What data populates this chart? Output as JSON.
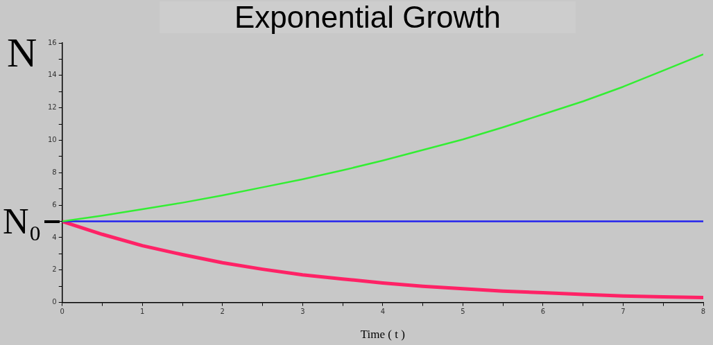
{
  "chart_data": {
    "type": "line",
    "title": "Exponential Growth",
    "xlabel": "Time ( t )",
    "ylabel": "N",
    "x": [
      0,
      0.5,
      1,
      1.5,
      2,
      2.5,
      3,
      3.5,
      4,
      4.5,
      5,
      5.5,
      6,
      6.5,
      7,
      7.5,
      8
    ],
    "series": [
      {
        "color": "#33ee33",
        "values": [
          5,
          5.35,
          5.75,
          6.15,
          6.6,
          7.1,
          7.6,
          8.15,
          8.75,
          9.4,
          10.05,
          10.8,
          11.6,
          12.4,
          13.3,
          14.3,
          15.3
        ]
      },
      {
        "color": "#2222ee",
        "values": [
          5,
          5,
          5,
          5,
          5,
          5,
          5,
          5,
          5,
          5,
          5,
          5,
          5,
          5,
          5,
          5,
          5
        ]
      },
      {
        "color": "#ff2266",
        "values": [
          5,
          4.2,
          3.5,
          2.95,
          2.45,
          2.05,
          1.7,
          1.45,
          1.2,
          1,
          0.85,
          0.7,
          0.6,
          0.5,
          0.4,
          0.35,
          0.3
        ]
      }
    ],
    "xlim": [
      0,
      8
    ],
    "ylim": [
      0,
      16
    ],
    "xticks": [
      0,
      {
        "value": 0.5,
        "label": null
      },
      1,
      {
        "value": 1.5,
        "label": null
      },
      2,
      {
        "value": 2.5,
        "label": null
      },
      3,
      {
        "value": 3.5,
        "label": null
      },
      4,
      {
        "value": 4.5,
        "label": null
      },
      5,
      {
        "value": 5.5,
        "label": null
      },
      6,
      {
        "value": 6.5,
        "label": null
      },
      7,
      {
        "value": 7.5,
        "label": null
      },
      8
    ],
    "yticks": [
      0,
      {
        "value": 1,
        "label": null
      },
      2,
      {
        "value": 3,
        "label": null
      },
      4,
      {
        "value": 5,
        "label": null
      },
      6,
      {
        "value": 7,
        "label": null
      },
      8,
      {
        "value": 9,
        "label": null
      },
      10,
      {
        "value": 11,
        "label": null
      },
      12,
      {
        "value": 13,
        "label": null
      },
      14,
      {
        "value": 15,
        "label": null
      },
      16
    ],
    "annotations": [
      {
        "text": "N₀",
        "x": 0,
        "y": 5
      }
    ],
    "grid": false,
    "legend": false,
    "marker": "none",
    "line_style": "solid"
  }
}
